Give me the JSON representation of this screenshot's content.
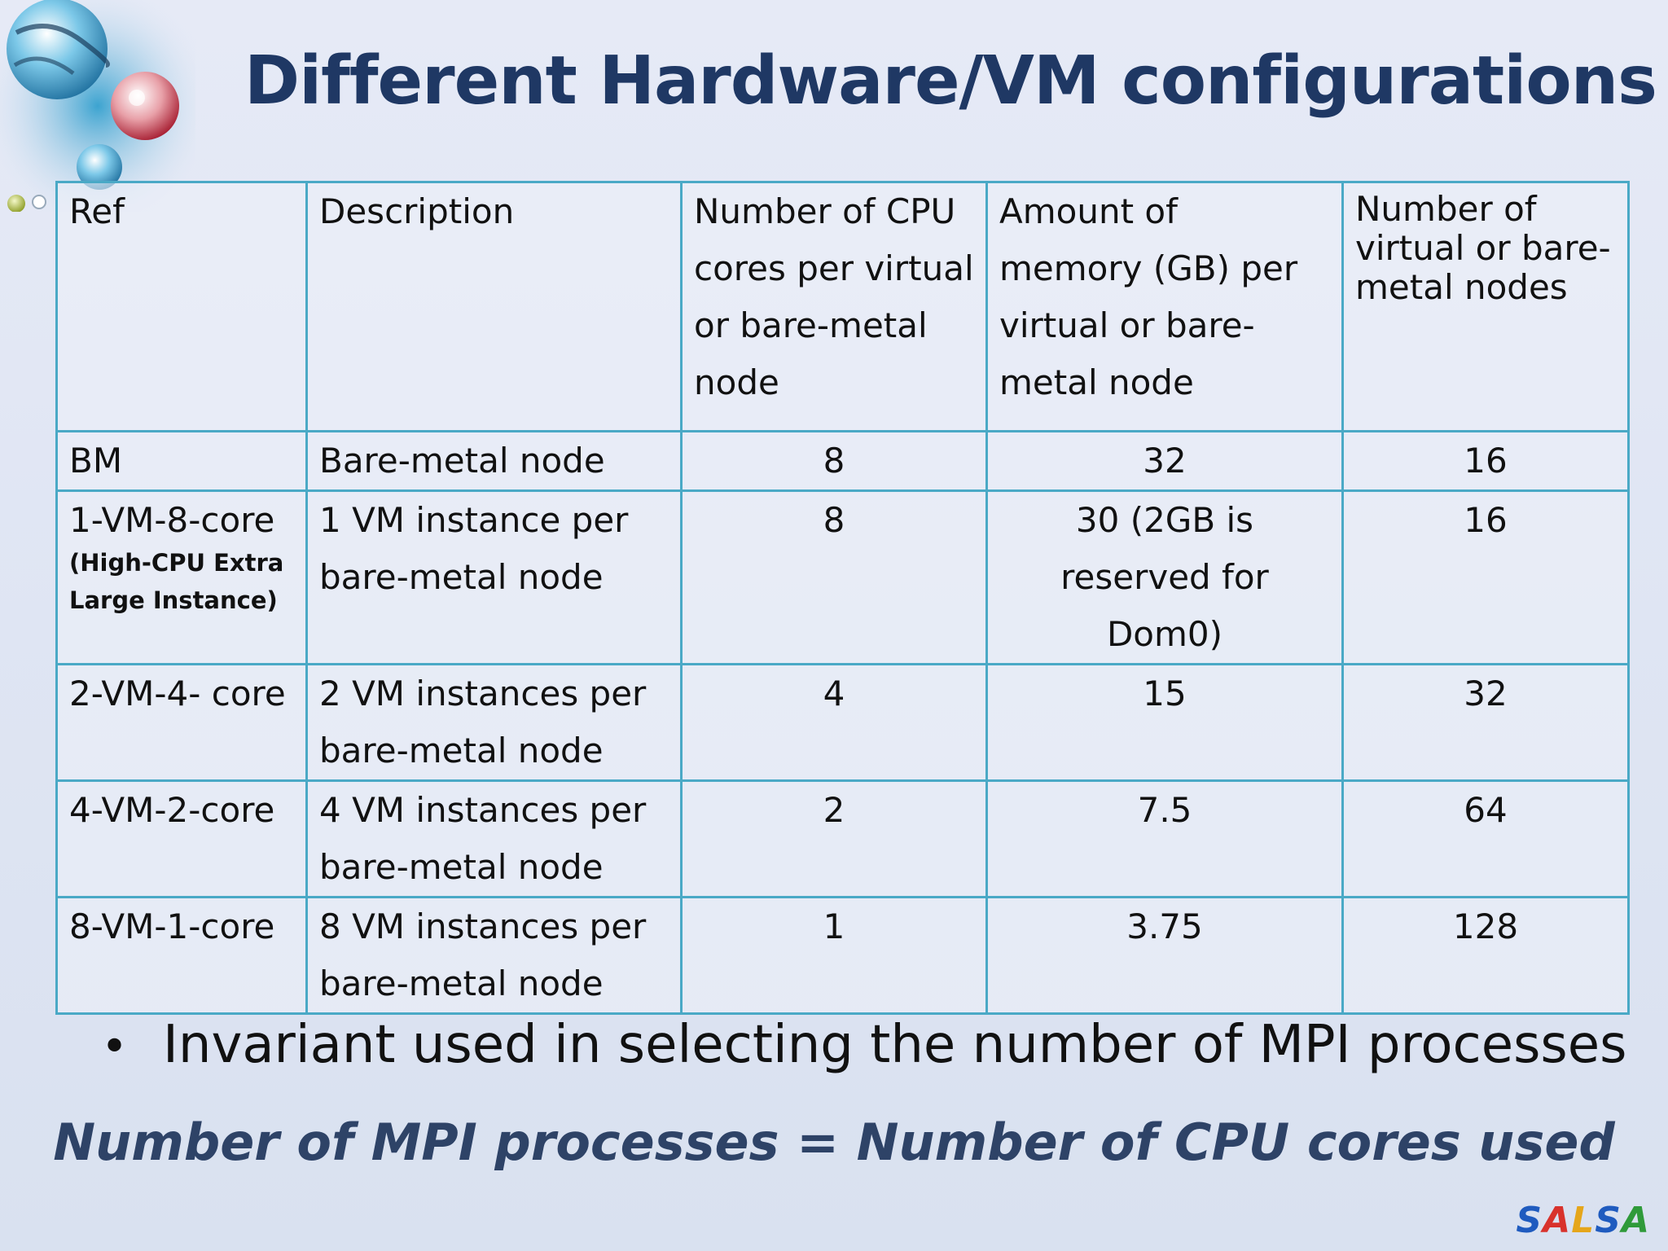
{
  "slide": {
    "title": "Different Hardware/VM configurations",
    "bullet": "Invariant used in selecting the number of MPI processes",
    "formula": "Number of MPI processes = Number of CPU cores used",
    "logo_letters": [
      "S",
      "A",
      "L",
      "S",
      "A"
    ],
    "logo_colors": [
      "#1f5bbf",
      "#d8322c",
      "#e5a61b",
      "#1f5bbf",
      "#2f9a3a"
    ]
  },
  "table": {
    "headers": {
      "ref": "Ref",
      "description": "Description",
      "cpu_cores": "Number of CPU cores per virtual or bare-metal node",
      "memory": "Amount of memory (GB) per virtual or bare-metal node",
      "nodes": "Number of virtual or bare-metal nodes"
    },
    "rows": [
      {
        "ref": "BM",
        "note": "",
        "description": "Bare-metal node",
        "cpu_cores": "8",
        "memory": "32",
        "nodes": "16"
      },
      {
        "ref": "1-VM-8-core",
        "note": "(High-CPU Extra Large Instance)",
        "description": "1 VM instance per bare-metal node",
        "cpu_cores": "8",
        "memory": "30 (2GB is reserved for Dom0)",
        "nodes": "16"
      },
      {
        "ref": "2-VM-4- core",
        "note": "",
        "description": "2  VM instances per bare-metal node",
        "cpu_cores": "4",
        "memory": "15",
        "nodes": "32"
      },
      {
        "ref": "4-VM-2-core",
        "note": "",
        "description": "4 VM instances per bare-metal node",
        "cpu_cores": "2",
        "memory": "7.5",
        "nodes": "64"
      },
      {
        "ref": "8-VM-1-core",
        "note": "",
        "description": "8 VM instances per bare-metal node",
        "cpu_cores": "1",
        "memory": "3.75",
        "nodes": "128"
      }
    ]
  },
  "colors": {
    "title": "#1f3864",
    "table_border": "#4aa9c6",
    "formula": "#2e4367"
  },
  "icons": {
    "decoration": "globe-cluster-icon"
  }
}
